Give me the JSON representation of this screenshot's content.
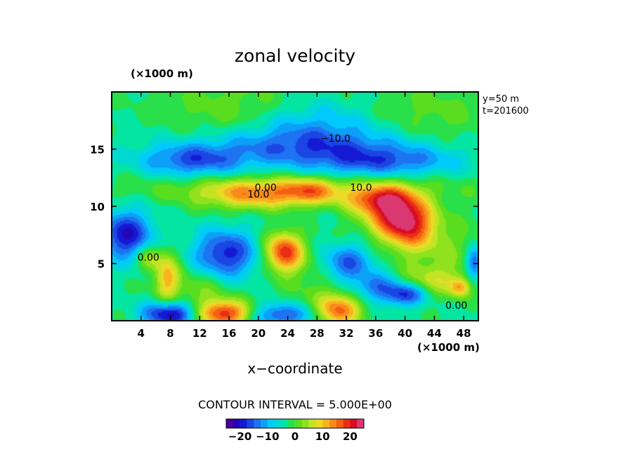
{
  "chart_data": {
    "type": "heatmap",
    "title": "zonal velocity",
    "xlabel": "x−coordinate",
    "x_unit": "(×1000 m)",
    "y_unit": "(×1000 m)",
    "side_labels": [
      "y=50  m",
      "t=201600"
    ],
    "contour_interval_label": "CONTOUR INTERVAL = 5.000E+00",
    "xlim": [
      0,
      50
    ],
    "ylim": [
      0,
      20
    ],
    "x_ticks": [
      4,
      8,
      12,
      16,
      20,
      24,
      28,
      32,
      36,
      40,
      44,
      48
    ],
    "x_tick_labels": [
      "4",
      "8",
      "12",
      "16",
      "20",
      "24",
      "28",
      "32",
      "36",
      "40",
      "44",
      "48"
    ],
    "y_ticks": [
      5,
      10,
      15
    ],
    "y_tick_labels": [
      "5",
      "10",
      "15"
    ],
    "value_range": [
      -25,
      25
    ],
    "colorbar_ticks": [
      -20,
      -10,
      0,
      10,
      20
    ],
    "colorbar_tick_labels": [
      "−20",
      "−10",
      "0",
      "10",
      "20"
    ],
    "contour_labels": [
      {
        "text": "−10.0",
        "x": 30.5,
        "y": 15.9
      },
      {
        "text": "0.00",
        "x": 21.0,
        "y": 11.6
      },
      {
        "text": "10.0",
        "x": 20.0,
        "y": 11.0
      },
      {
        "text": "10.0",
        "x": 34.0,
        "y": 11.6
      },
      {
        "text": "0.00",
        "x": 5.0,
        "y": 5.5
      },
      {
        "text": "0.00",
        "x": 47.0,
        "y": 1.3
      }
    ],
    "background_value": -3,
    "features": [
      {
        "x": 17,
        "y": 18.5,
        "sx": 7,
        "sy": 2.0,
        "v": 5
      },
      {
        "x": 44,
        "y": 18.3,
        "sx": 6,
        "sy": 2.0,
        "v": 4
      },
      {
        "x": 27,
        "y": 17.2,
        "sx": 6,
        "sy": 1.6,
        "v": -7
      },
      {
        "x": 26,
        "y": 15.2,
        "sx": 10,
        "sy": 1.2,
        "v": -10
      },
      {
        "x": 11,
        "y": 14.0,
        "sx": 5,
        "sy": 1.0,
        "v": -12
      },
      {
        "x": 37,
        "y": 13.9,
        "sx": 7,
        "sy": 1.0,
        "v": -11
      },
      {
        "x": 25,
        "y": 11.6,
        "sx": 18,
        "sy": 0.9,
        "v": 5
      },
      {
        "x": 19,
        "y": 11.0,
        "sx": 5,
        "sy": 0.9,
        "v": 13
      },
      {
        "x": 27,
        "y": 11.3,
        "sx": 3,
        "sy": 0.8,
        "v": 12
      },
      {
        "x": 38,
        "y": 9.6,
        "sx": 3,
        "sy": 1.5,
        "v": 16
      },
      {
        "x": 40.5,
        "y": 8.4,
        "sx": 2.5,
        "sy": 1.5,
        "v": 18
      },
      {
        "x": 36,
        "y": 10.6,
        "sx": 3,
        "sy": 0.8,
        "v": 12
      },
      {
        "x": 2,
        "y": 7.5,
        "sx": 2.5,
        "sy": 1.5,
        "v": -17
      },
      {
        "x": 15.5,
        "y": 5.8,
        "sx": 3,
        "sy": 1.5,
        "v": -16
      },
      {
        "x": 23.5,
        "y": 6.0,
        "sx": 1.8,
        "sy": 1.2,
        "v": 22
      },
      {
        "x": 32,
        "y": 5.0,
        "sx": 2.5,
        "sy": 1.2,
        "v": -13
      },
      {
        "x": 49.5,
        "y": 5.0,
        "sx": 0.8,
        "sy": 1.0,
        "v": -14
      },
      {
        "x": 5,
        "y": 5.5,
        "sx": 1.2,
        "sy": 0.8,
        "v": 9
      },
      {
        "x": 7.5,
        "y": 3.8,
        "sx": 1.2,
        "sy": 1.6,
        "v": 13
      },
      {
        "x": 8,
        "y": 0.6,
        "sx": 2.5,
        "sy": 0.8,
        "v": -20
      },
      {
        "x": 15.5,
        "y": 0.6,
        "sx": 2.5,
        "sy": 0.8,
        "v": 22
      },
      {
        "x": 23,
        "y": 0.5,
        "sx": 3,
        "sy": 0.7,
        "v": -13
      },
      {
        "x": 31,
        "y": 0.9,
        "sx": 2,
        "sy": 1.0,
        "v": 18
      },
      {
        "x": 40,
        "y": 2.3,
        "sx": 2,
        "sy": 0.7,
        "v": -16
      },
      {
        "x": 36,
        "y": 3.0,
        "sx": 2,
        "sy": 0.8,
        "v": -10
      },
      {
        "x": 44,
        "y": 3.5,
        "sx": 3,
        "sy": 1.0,
        "v": 8
      },
      {
        "x": 47.5,
        "y": 2.9,
        "sx": 1.0,
        "sy": 0.6,
        "v": 12
      },
      {
        "x": 12,
        "y": 2.5,
        "sx": 3,
        "sy": 1.5,
        "v": 6
      },
      {
        "x": 28,
        "y": 3.5,
        "sx": 3,
        "sy": 2.0,
        "v": 4
      },
      {
        "x": 45,
        "y": 6.5,
        "sx": 4,
        "sy": 2.0,
        "v": 5
      }
    ]
  }
}
